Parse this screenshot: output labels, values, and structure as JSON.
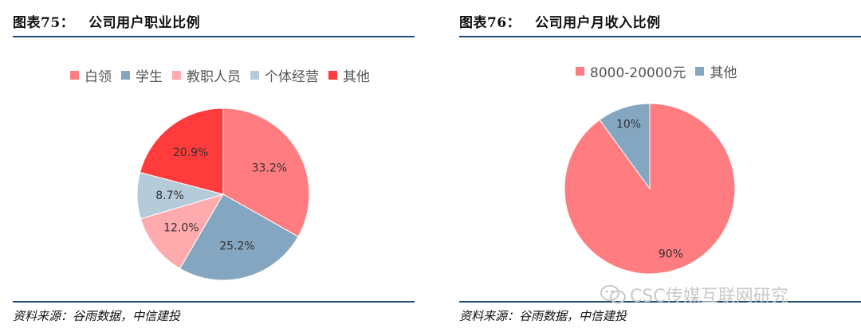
{
  "left": {
    "title_label": "图表75：",
    "title_text": "公司用户职业比例",
    "source": "资料来源：谷雨数据，中信建投"
  },
  "right": {
    "title_label": "图表76：",
    "title_text": "公司用户月收入比例",
    "source": "资料来源：谷雨数据，中信建投"
  },
  "watermark": "CSC传媒互联网研究",
  "chart_data": [
    {
      "type": "pie",
      "title": "公司用户职业比例",
      "legend_position": "top",
      "slices": [
        {
          "label": "白领",
          "value": 33.2,
          "value_label": "33.2%",
          "color": "#ff7c80"
        },
        {
          "label": "学生",
          "value": 25.2,
          "value_label": "25.2%",
          "color": "#84a6c0"
        },
        {
          "label": "教职人员",
          "value": 12.0,
          "value_label": "12.0%",
          "color": "#ffaaad"
        },
        {
          "label": "个体经营",
          "value": 8.7,
          "value_label": "8.7%",
          "color": "#b6cbd9"
        },
        {
          "label": "其他",
          "value": 20.9,
          "value_label": "20.9%",
          "color": "#ff3b3b"
        }
      ]
    },
    {
      "type": "pie",
      "title": "公司用户月收入比例",
      "legend_position": "top",
      "slices": [
        {
          "label": "8000-20000元",
          "value": 90,
          "value_label": "90%",
          "color": "#ff7c80"
        },
        {
          "label": "其他",
          "value": 10,
          "value_label": "10%",
          "color": "#84a6c0"
        }
      ]
    }
  ]
}
